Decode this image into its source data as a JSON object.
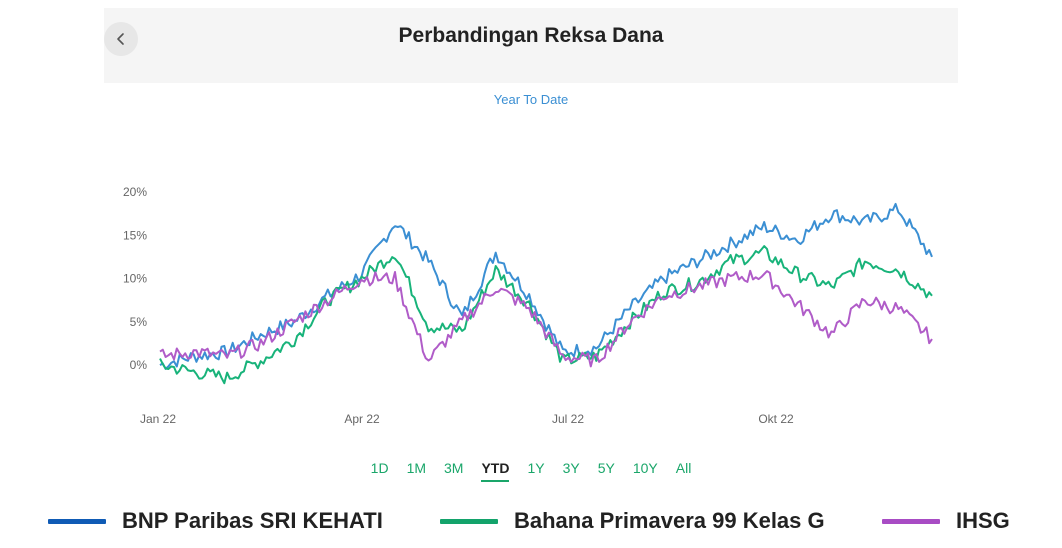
{
  "header": {
    "title": "Perbandingan Reksa Dana"
  },
  "period_label": "Year To Date",
  "range_buttons": [
    "1D",
    "1M",
    "3M",
    "YTD",
    "1Y",
    "3Y",
    "5Y",
    "10Y",
    "All"
  ],
  "active_range": "YTD",
  "colors": {
    "BNP Paribas SRI KEHATI": "#3b8fd3",
    "Bahana Primavera 99 Kelas G": "#18b37a",
    "IHSG": "#b05cc8"
  },
  "chart_data": {
    "type": "line",
    "title": "",
    "xlabel": "",
    "ylabel": "",
    "x_ticks": [
      "Jan 22",
      "Apr 22",
      "Jul 22",
      "Okt 22"
    ],
    "y_ticks": [
      "20%",
      "15%",
      "10%",
      "5%",
      "0%"
    ],
    "ylim": [
      -3,
      21
    ],
    "x": [
      "Jan 22",
      "Jan 22",
      "Feb 22",
      "Feb 22",
      "Mar 22",
      "Mar 22",
      "Apr 22",
      "Apr 22",
      "May 22",
      "May 22",
      "Jun 22",
      "Jun 22",
      "Jul 22",
      "Jul 22",
      "Aug 22",
      "Aug 22",
      "Sep 22",
      "Sep 22",
      "Oct 22",
      "Oct 22",
      "Nov 22",
      "Nov 22",
      "Dec 22",
      "Dec 22"
    ],
    "series": [
      {
        "name": "BNP Paribas SRI KEHATI",
        "color": "#3b8fd3",
        "values": [
          0,
          1.0,
          1.5,
          3.5,
          5.0,
          8.0,
          10.5,
          16.5,
          12.0,
          5.5,
          13.0,
          8.0,
          1.5,
          2.0,
          6.5,
          10.0,
          12.0,
          14.0,
          16.0,
          14.5,
          17.5,
          16.5,
          18.0,
          12.5
        ]
      },
      {
        "name": "Bahana Primavera 99 Kelas G",
        "color": "#18b37a",
        "values": [
          0,
          -0.8,
          -1.5,
          0.5,
          3.0,
          7.5,
          10.0,
          13.0,
          4.5,
          4.0,
          11.0,
          7.0,
          0.5,
          1.0,
          5.0,
          8.5,
          9.5,
          12.0,
          13.0,
          10.5,
          9.0,
          12.0,
          11.0,
          8.0
        ]
      },
      {
        "name": "IHSG",
        "color": "#b05cc8",
        "values": [
          1.0,
          1.5,
          1.0,
          2.5,
          5.0,
          7.5,
          10.0,
          10.0,
          0.5,
          5.0,
          9.0,
          6.5,
          1.0,
          0.5,
          5.0,
          8.0,
          9.0,
          10.0,
          10.5,
          7.0,
          3.5,
          7.5,
          6.5,
          3.0
        ]
      }
    ],
    "grid": false,
    "legend_position": "bottom"
  }
}
